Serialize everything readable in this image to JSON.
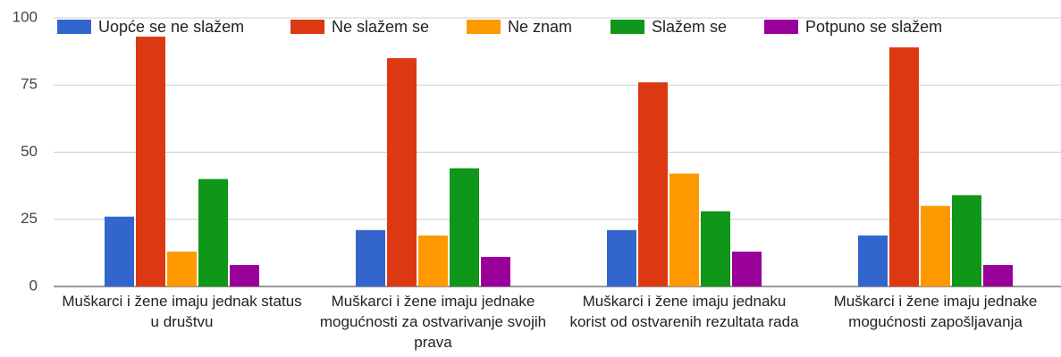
{
  "chart_data": {
    "type": "bar",
    "categories": [
      "Muškarci i žene imaju jednak status u društvu",
      "Muškarci i žene imaju jednake mogućnosti za ostvarivanje svojih prava",
      "Muškarci i žene imaju jednaku korist od ostvarenih rezultata rada",
      "Muškarci i žene imaju jednake mogućnosti zapošljavanja"
    ],
    "series": [
      {
        "name": "Uopće se ne slažem",
        "color": "#3366cc",
        "values": [
          26,
          21,
          21,
          19
        ]
      },
      {
        "name": "Ne slažem se",
        "color": "#dc3912",
        "values": [
          93,
          85,
          76,
          89
        ]
      },
      {
        "name": "Ne znam",
        "color": "#ff9900",
        "values": [
          13,
          19,
          42,
          30
        ]
      },
      {
        "name": "Slažem se",
        "color": "#109618",
        "values": [
          40,
          44,
          28,
          34
        ]
      },
      {
        "name": "Potpuno se slažem",
        "color": "#990099",
        "values": [
          8,
          11,
          13,
          8
        ]
      }
    ],
    "ylim": [
      0,
      100
    ],
    "yticks": [
      0,
      25,
      50,
      75,
      100
    ],
    "grid": true,
    "legend": "top"
  }
}
